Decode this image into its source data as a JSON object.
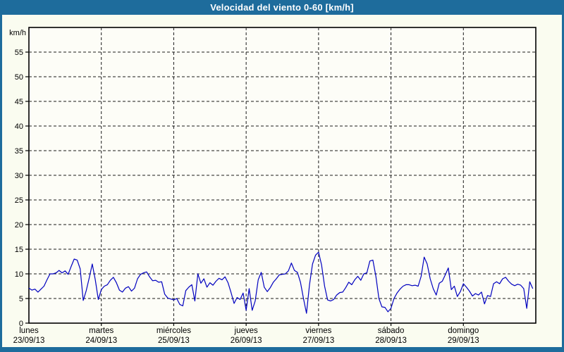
{
  "window": {
    "title": "Velocidad del viento 0-60 [km/h]"
  },
  "colors": {
    "titlebar_bg": "#1e6c9c",
    "window_border": "#1e6c9c",
    "content_bg": "#fafcf0",
    "plot_bg": "#fdfdf7",
    "plot_border": "#000000",
    "grid": "#1a1a1a",
    "line": "#0000bf",
    "title_text": "#ffffff",
    "tick_text": "#000000"
  },
  "chart_data": {
    "type": "line",
    "title": "Velocidad del viento 0-60 [km/h]",
    "ylabel": "km/h",
    "xlabel": "",
    "ylim": [
      0,
      60
    ],
    "yticks": [
      0,
      5,
      10,
      15,
      20,
      25,
      30,
      35,
      40,
      45,
      50,
      55
    ],
    "grid": "dashed, horizontal every 5 km/h and vertical at each day start",
    "legend_position": "none",
    "x_days": [
      {
        "name": "lunes",
        "date": "23/09/13"
      },
      {
        "name": "martes",
        "date": "24/09/13"
      },
      {
        "name": "miércoles",
        "date": "25/09/13"
      },
      {
        "name": "jueves",
        "date": "26/09/13"
      },
      {
        "name": "viernes",
        "date": "27/09/13"
      },
      {
        "name": "sábado",
        "date": "28/09/13"
      },
      {
        "name": "domingo",
        "date": "29/09/13"
      }
    ],
    "points_per_day": 24,
    "series": [
      {
        "name": "velocidad del viento (km/h)",
        "color": "#0000bf",
        "values_by_day": [
          [
            7.1,
            6.7,
            6.9,
            6.3,
            6.9,
            7.5,
            8.8,
            10.0,
            10.0,
            10.2,
            10.7,
            10.2,
            10.6,
            9.9,
            11.5,
            13.0,
            12.8,
            11.0,
            4.6,
            6.6,
            9.2,
            12.0,
            8.8,
            4.8
          ],
          [
            6.8,
            7.5,
            7.8,
            8.7,
            9.3,
            8.2,
            6.7,
            6.3,
            7.1,
            7.4,
            6.5,
            7.1,
            9.0,
            9.9,
            10.2,
            10.4,
            9.4,
            8.6,
            8.7,
            8.3,
            8.4,
            5.9,
            5.1,
            4.9
          ],
          [
            4.7,
            5.0,
            3.8,
            3.5,
            6.6,
            7.3,
            7.8,
            4.5,
            10.0,
            8.1,
            9.0,
            7.3,
            8.2,
            7.7,
            8.5,
            9.1,
            8.8,
            9.4,
            8.2,
            6.2,
            4.0,
            5.2,
            4.8,
            6.1
          ],
          [
            2.6,
            7.0,
            2.6,
            4.5,
            8.8,
            10.3,
            7.3,
            6.4,
            7.2,
            8.3,
            9.0,
            9.8,
            9.9,
            10.0,
            10.6,
            12.2,
            10.7,
            10.3,
            8.3,
            5.0,
            2.0,
            7.8,
            12.0,
            13.8
          ],
          [
            14.4,
            11.8,
            7.5,
            4.7,
            4.5,
            4.8,
            5.7,
            6.2,
            6.3,
            7.2,
            8.3,
            7.8,
            8.8,
            9.5,
            8.7,
            10.0,
            10.2,
            12.6,
            12.8,
            9.5,
            5.0,
            3.3,
            3.2,
            2.3
          ],
          [
            3.0,
            5.0,
            6.1,
            6.9,
            7.5,
            7.8,
            7.8,
            7.6,
            7.7,
            7.5,
            9.5,
            13.4,
            12.0,
            9.0,
            7.0,
            5.7,
            8.1,
            8.5,
            9.8,
            11.2,
            6.8,
            7.5,
            5.4,
            6.4
          ],
          [
            8.0,
            7.3,
            6.5,
            5.5,
            6.0,
            5.7,
            6.3,
            3.9,
            5.6,
            5.4,
            8.0,
            8.4,
            8.0,
            9.0,
            9.3,
            8.5,
            7.9,
            7.6,
            7.9,
            7.7,
            7.0,
            3.0,
            8.4,
            7.0
          ]
        ]
      }
    ]
  }
}
